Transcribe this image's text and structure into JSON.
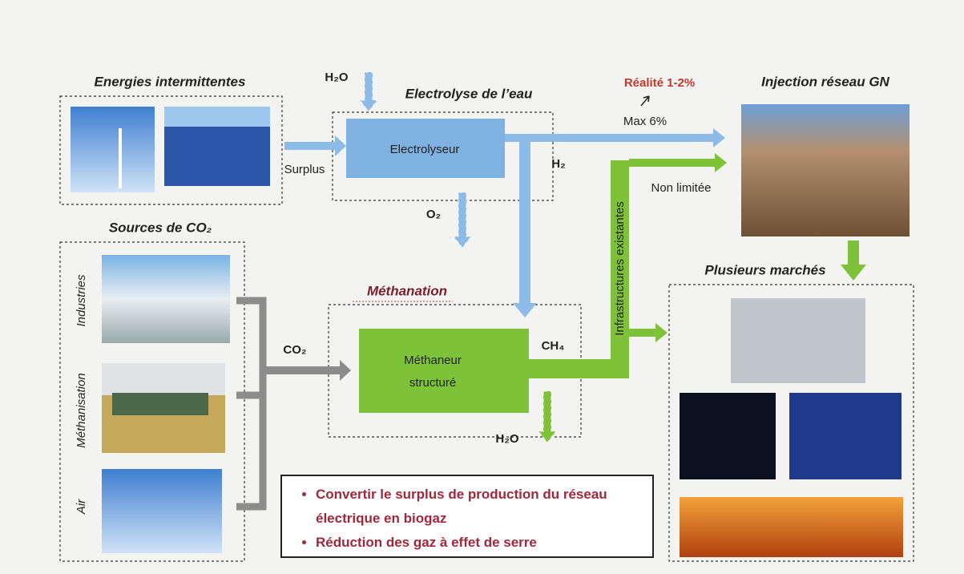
{
  "sources": {
    "energies": {
      "title": "Energies intermittentes"
    },
    "co2": {
      "title": "Sources de CO₂",
      "items": [
        "Industries",
        "Méthanisation",
        "Air"
      ]
    }
  },
  "electrolysis": {
    "title": "Electrolyse de l’eau",
    "unit": "Electrolyseur",
    "water": "H₂O",
    "oxygen": "O₂",
    "hydrogen": "H₂",
    "surplus": "Surplus"
  },
  "injection": {
    "title": "Injection réseau GN",
    "reality": "Réalité 1-2%",
    "max": "Max 6%",
    "unlimited": "Non limitée"
  },
  "infrastructure": "Infrastructures existantes",
  "methanation": {
    "title": "Méthanation",
    "unit": [
      "Méthaneur",
      "structuré"
    ],
    "co2": "CO₂",
    "ch4": "CH₄",
    "water": "H₂O"
  },
  "markets": {
    "title": "Plusieurs marchés"
  },
  "notes": [
    "Convertir le surplus de production du réseau électrique en biogaz",
    "Réduction des gaz à effet de serre"
  ]
}
